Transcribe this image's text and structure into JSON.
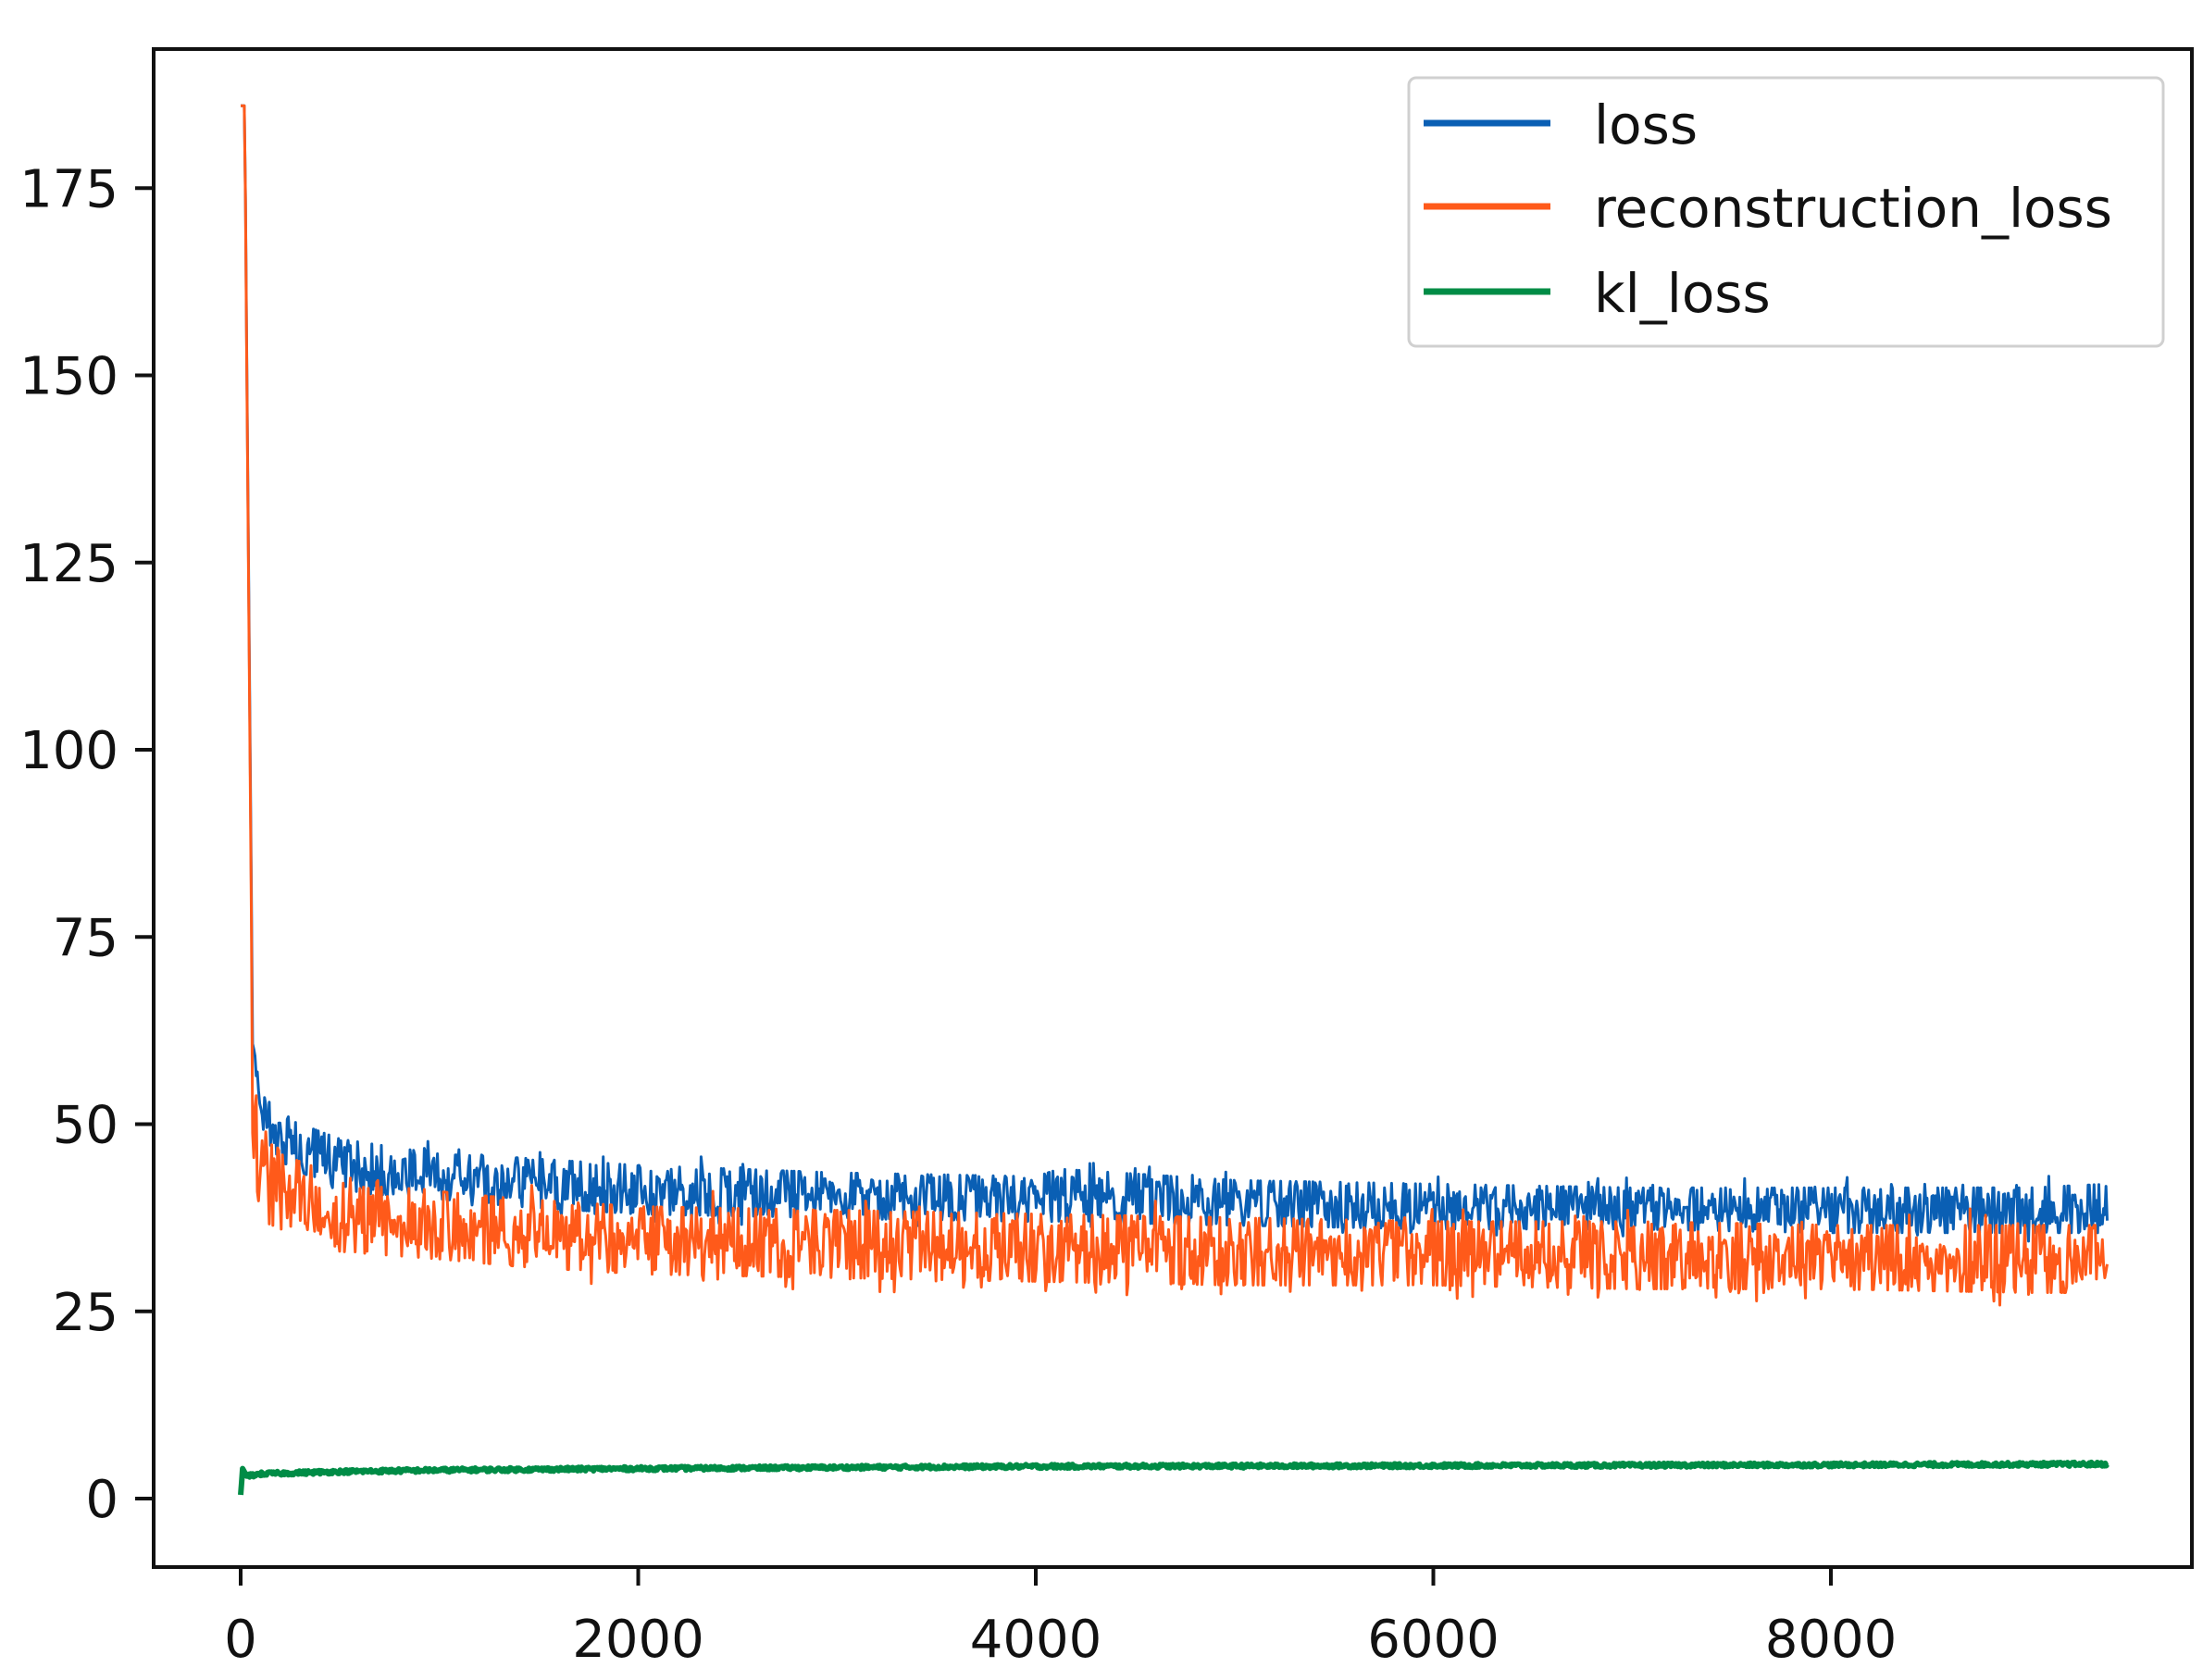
{
  "chart_data": {
    "type": "line",
    "title": "",
    "xlabel": "",
    "ylabel": "",
    "xlim": [
      -470,
      9850
    ],
    "ylim": [
      -9,
      191
    ],
    "x_ticks": [
      0,
      2000,
      4000,
      6000,
      8000
    ],
    "x_tick_labels": [
      "0",
      "2000",
      "4000",
      "6000",
      "8000"
    ],
    "y_ticks": [
      0,
      25,
      50,
      75,
      100,
      125,
      150,
      175
    ],
    "y_tick_labels": [
      "0",
      "25",
      "50",
      "75",
      "100",
      "125",
      "150",
      "175"
    ],
    "grid": false,
    "legend_position": "upper right",
    "x_range_of_data": [
      0,
      9390
    ],
    "series": [
      {
        "name": "loss",
        "color": "#0a5fb4",
        "description": "noisy band; band low/high per anchor step",
        "x": [
          0,
          20,
          60,
          100,
          200,
          500,
          1000,
          1400,
          2000,
          3000,
          4000,
          4120,
          5000,
          6000,
          7000,
          8000,
          9000,
          9390
        ],
        "low": [
          186,
          186,
          60,
          50,
          45,
          41,
          40,
          39,
          38,
          37.5,
          37,
          37,
          36.5,
          36,
          36,
          35.5,
          35.5,
          35.5
        ],
        "high": [
          186,
          186,
          62,
          55,
          51,
          48,
          46,
          45.5,
          44.5,
          43.5,
          43,
          44,
          42.5,
          42,
          41.5,
          41.5,
          41.5,
          42
        ]
      },
      {
        "name": "reconstruction_loss",
        "color": "#ff5a1a",
        "description": "noisy band drawn below loss",
        "x": [
          0,
          20,
          60,
          100,
          200,
          500,
          1000,
          1400,
          2000,
          3000,
          4000,
          5000,
          6000,
          7000,
          8000,
          9000,
          9390
        ],
        "low": [
          186,
          186,
          45,
          38,
          35,
          33,
          32,
          31,
          30,
          29.5,
          29,
          28.5,
          28.5,
          28,
          28,
          27.5,
          27.5
        ],
        "high": [
          186,
          186,
          58,
          52,
          46,
          43,
          41,
          40,
          39,
          38.5,
          38,
          37.5,
          37,
          37,
          36.5,
          36.5,
          36.5
        ]
      },
      {
        "name": "kl_loss",
        "color": "#008c46",
        "description": "smooth, rises slowly",
        "x": [
          0,
          10,
          30,
          100,
          500,
          1000,
          2000,
          4000,
          6000,
          8000,
          9390
        ],
        "values": [
          0.5,
          4.0,
          3.0,
          3.3,
          3.6,
          3.8,
          4.0,
          4.3,
          4.4,
          4.5,
          4.6
        ]
      }
    ]
  },
  "legend": {
    "items": [
      {
        "label": "loss",
        "color": "#0a5fb4"
      },
      {
        "label": "reconstruction_loss",
        "color": "#ff5a1a"
      },
      {
        "label": "kl_loss",
        "color": "#008c46"
      }
    ]
  }
}
